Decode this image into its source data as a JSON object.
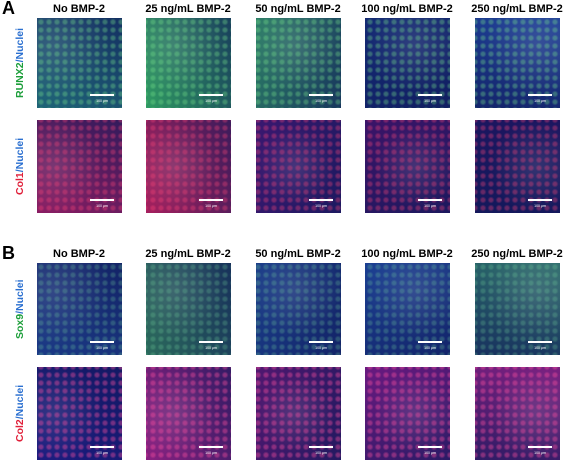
{
  "panels": [
    {
      "label": "A",
      "columns": [
        "No BMP-2",
        "25 ng/mL BMP-2",
        "50 ng/mL BMP-2",
        "100 ng/mL BMP-2",
        "250 ng/mL BMP-2"
      ],
      "rows": [
        {
          "label_parts": [
            "RUNX2",
            "/Nuclei"
          ]
        },
        {
          "label_parts": [
            "Col1",
            "/Nuclei"
          ]
        }
      ]
    },
    {
      "label": "B",
      "columns": [
        "No BMP-2",
        "25 ng/mL BMP-2",
        "50 ng/mL BMP-2",
        "100 ng/mL BMP-2",
        "250 ng/mL BMP-2"
      ],
      "rows": [
        {
          "label_parts": [
            "Sox9",
            "/Nuclei"
          ]
        },
        {
          "label_parts": [
            "Col2",
            "/Nuclei"
          ]
        }
      ]
    }
  ],
  "scale_bar_label": "100 μm"
}
